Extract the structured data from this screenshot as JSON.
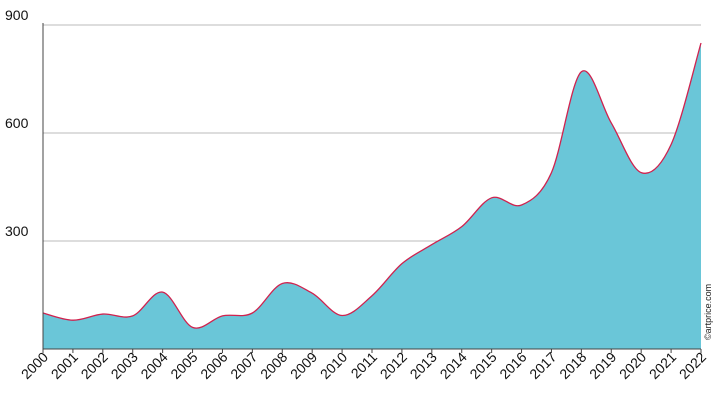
{
  "chart_data": {
    "type": "area",
    "title": "",
    "xlabel": "",
    "ylabel": "",
    "x": [
      "2000",
      "2001",
      "2002",
      "2003",
      "2004",
      "2005",
      "2006",
      "2007",
      "2008",
      "2009",
      "2010",
      "2011",
      "2012",
      "2013",
      "2014",
      "2015",
      "2016",
      "2017",
      "2018",
      "2019",
      "2020",
      "2021",
      "2022"
    ],
    "series": [
      {
        "values": [
          100,
          80,
          97,
          92,
          158,
          60,
          92,
          100,
          182,
          155,
          93,
          148,
          237,
          290,
          340,
          420,
          400,
          490,
          770,
          628,
          490,
          568,
          850
        ]
      }
    ],
    "yticks": [
      "900",
      "600",
      "300"
    ],
    "ylim": [
      0,
      900
    ],
    "grid": true,
    "credit": "©artprice.com",
    "colors": {
      "fill": "#6ac6d8",
      "line": "#d0224e",
      "grid": "#bbbbbb",
      "axis": "#444444"
    }
  }
}
